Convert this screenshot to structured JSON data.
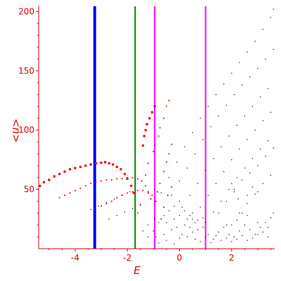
{
  "chart_data": {
    "type": "scatter",
    "title": "",
    "xlabel": "E",
    "ylabel": "<n>",
    "xlim": [
      -5.4,
      3.65
    ],
    "ylim": [
      0,
      205
    ],
    "grid": false,
    "legend": "none",
    "xticks": [
      -4,
      -2,
      0,
      2
    ],
    "yticks": [
      50,
      100,
      150,
      200
    ],
    "xtick_labels": [
      "-4",
      "-2",
      "0",
      "2"
    ],
    "ytick_labels": [
      "50",
      "100",
      "150",
      "200"
    ],
    "axis_color": "#e00000",
    "vertical_lines": [
      {
        "x": -3.25,
        "color": "#0000ff"
      },
      {
        "x": -1.7,
        "color": "#008000"
      },
      {
        "x": -0.95,
        "color": "#ff00ff"
      },
      {
        "x": 1.0,
        "color": "#ff00ff"
      }
    ],
    "series": [
      {
        "color": "#ff0000",
        "size": "large",
        "points": [
          [
            -5.35,
            53
          ],
          [
            -5.2,
            56
          ],
          [
            -5.0,
            58
          ],
          [
            -4.8,
            61
          ],
          [
            -4.6,
            63
          ],
          [
            -4.4,
            65
          ],
          [
            -4.2,
            67
          ],
          [
            -4.0,
            68
          ],
          [
            -3.8,
            69
          ],
          [
            -3.6,
            70
          ],
          [
            -3.4,
            71
          ],
          [
            -3.2,
            72
          ],
          [
            -3.0,
            72.5
          ],
          [
            -2.85,
            73
          ],
          [
            -2.7,
            72
          ],
          [
            -2.55,
            71
          ],
          [
            -2.4,
            69
          ],
          [
            -2.25,
            67
          ],
          [
            -2.1,
            63
          ],
          [
            -2.0,
            59
          ],
          [
            -1.85,
            53
          ],
          [
            -1.75,
            47
          ],
          [
            -1.4,
            87
          ],
          [
            -1.35,
            95
          ],
          [
            -1.3,
            100
          ],
          [
            -1.25,
            105
          ],
          [
            -1.15,
            110
          ],
          [
            -1.05,
            115
          ],
          [
            -0.95,
            120
          ]
        ]
      },
      {
        "color": "#ff0000",
        "size": "small",
        "points": [
          [
            -4.6,
            43
          ],
          [
            -4.4,
            45
          ],
          [
            -4.2,
            47
          ],
          [
            -4.0,
            49
          ],
          [
            -3.8,
            51
          ],
          [
            -3.6,
            53
          ],
          [
            -3.4,
            55
          ],
          [
            -3.2,
            56
          ],
          [
            -3.0,
            57
          ],
          [
            -2.8,
            58
          ],
          [
            -2.6,
            58
          ],
          [
            -2.4,
            59
          ],
          [
            -2.2,
            59
          ],
          [
            -2.0,
            60
          ],
          [
            -1.8,
            60
          ],
          [
            -1.6,
            59
          ],
          [
            -1.45,
            57
          ],
          [
            -1.3,
            53
          ],
          [
            -1.2,
            47
          ],
          [
            -1.1,
            42
          ],
          [
            -3.0,
            36
          ],
          [
            -2.8,
            38
          ],
          [
            -2.6,
            40
          ],
          [
            -2.4,
            43
          ],
          [
            -2.2,
            45
          ],
          [
            -2.0,
            47
          ],
          [
            -1.8,
            48
          ],
          [
            -1.6,
            49
          ],
          [
            -1.4,
            49
          ],
          [
            -1.2,
            48
          ],
          [
            -1.05,
            45
          ],
          [
            -0.95,
            40
          ],
          [
            -1.6,
            30
          ],
          [
            -1.5,
            37
          ],
          [
            -1.3,
            62
          ],
          [
            -1.2,
            72
          ],
          [
            -1.0,
            82
          ],
          [
            -0.95,
            87
          ],
          [
            -0.8,
            95
          ],
          [
            -0.75,
            102
          ],
          [
            -0.6,
            110
          ],
          [
            -0.5,
            120
          ],
          [
            -0.4,
            125
          ],
          [
            -0.9,
            40
          ],
          [
            -0.85,
            48
          ],
          [
            -0.75,
            55
          ],
          [
            -0.6,
            65
          ],
          [
            -0.5,
            73
          ],
          [
            -0.4,
            80
          ],
          [
            -0.3,
            88
          ],
          [
            -0.7,
            25
          ],
          [
            -0.6,
            35
          ],
          [
            -0.45,
            45
          ],
          [
            -0.3,
            52
          ]
        ]
      },
      {
        "color": "#000000",
        "size": "tiny",
        "points": [
          [
            -0.7,
            47
          ],
          [
            -0.4,
            60
          ],
          [
            -0.1,
            73
          ],
          [
            0.2,
            86
          ],
          [
            0.5,
            98
          ],
          [
            0.8,
            110
          ],
          [
            1.1,
            120
          ],
          [
            1.4,
            130
          ],
          [
            1.7,
            139
          ],
          [
            2.0,
            148
          ],
          [
            2.3,
            157
          ],
          [
            2.6,
            166
          ],
          [
            2.9,
            175
          ],
          [
            3.2,
            185
          ],
          [
            3.5,
            195
          ],
          [
            3.6,
            202
          ],
          [
            -0.3,
            45
          ],
          [
            0.0,
            57
          ],
          [
            0.3,
            68
          ],
          [
            0.6,
            80
          ],
          [
            0.9,
            92
          ],
          [
            1.2,
            103
          ],
          [
            1.5,
            112
          ],
          [
            1.8,
            121
          ],
          [
            2.1,
            130
          ],
          [
            2.4,
            138
          ],
          [
            2.7,
            145
          ],
          [
            3.0,
            152
          ],
          [
            3.3,
            160
          ],
          [
            3.6,
            168
          ],
          [
            0.1,
            35
          ],
          [
            0.4,
            45
          ],
          [
            0.7,
            55
          ],
          [
            1.0,
            66
          ],
          [
            1.3,
            76
          ],
          [
            1.6,
            86
          ],
          [
            1.9,
            95
          ],
          [
            2.2,
            104
          ],
          [
            2.5,
            112
          ],
          [
            2.8,
            120
          ],
          [
            3.1,
            128
          ],
          [
            3.4,
            135
          ],
          [
            0.5,
            25
          ],
          [
            0.8,
            35
          ],
          [
            1.1,
            45
          ],
          [
            1.4,
            55
          ],
          [
            1.7,
            65
          ],
          [
            2.0,
            75
          ],
          [
            2.3,
            84
          ],
          [
            2.6,
            92
          ],
          [
            2.9,
            100
          ],
          [
            3.2,
            108
          ],
          [
            3.5,
            115
          ],
          [
            1.0,
            22
          ],
          [
            1.3,
            31
          ],
          [
            1.6,
            40
          ],
          [
            1.9,
            50
          ],
          [
            2.2,
            60
          ],
          [
            2.5,
            68
          ],
          [
            2.8,
            76
          ],
          [
            3.1,
            84
          ],
          [
            3.4,
            91
          ],
          [
            1.5,
            30
          ],
          [
            1.8,
            40
          ],
          [
            2.1,
            50
          ],
          [
            2.4,
            58
          ],
          [
            2.7,
            64
          ],
          [
            3.0,
            70
          ],
          [
            3.3,
            78
          ],
          [
            3.6,
            85
          ],
          [
            2.0,
            20
          ],
          [
            2.3,
            30
          ],
          [
            2.6,
            38
          ],
          [
            2.9,
            46
          ],
          [
            3.2,
            55
          ],
          [
            3.5,
            62
          ],
          [
            -3.4,
            33
          ],
          [
            -3.1,
            36
          ],
          [
            -2.8,
            39
          ],
          [
            -2.5,
            42
          ],
          [
            -2.2,
            45
          ],
          [
            -1.9,
            48
          ],
          [
            -2.7,
            25
          ],
          [
            -2.4,
            28
          ],
          [
            -2.1,
            31
          ],
          [
            -1.8,
            34
          ],
          [
            -1.5,
            37
          ],
          [
            -1.0,
            15
          ],
          [
            -0.8,
            22
          ],
          [
            -0.6,
            28
          ],
          [
            -0.4,
            32
          ],
          [
            -0.2,
            36
          ],
          [
            0.0,
            40
          ],
          [
            0.2,
            32
          ],
          [
            0.4,
            28
          ],
          [
            0.6,
            22
          ],
          [
            -0.9,
            10
          ],
          [
            -0.6,
            12
          ],
          [
            -0.3,
            16
          ],
          [
            -0.1,
            18
          ],
          [
            0.1,
            12
          ],
          [
            0.3,
            10
          ],
          [
            0.5,
            14
          ],
          [
            0.7,
            16
          ],
          [
            0.9,
            18
          ],
          [
            1.1,
            12
          ],
          [
            1.3,
            8
          ],
          [
            1.5,
            14
          ],
          [
            1.7,
            18
          ],
          [
            1.9,
            12
          ],
          [
            2.1,
            10
          ],
          [
            2.3,
            15
          ],
          [
            2.5,
            20
          ],
          [
            2.7,
            16
          ],
          [
            2.9,
            12
          ],
          [
            3.1,
            18
          ],
          [
            3.3,
            22
          ],
          [
            3.5,
            26
          ],
          [
            3.6,
            30
          ],
          [
            1.8,
            20
          ],
          [
            2.2,
            24
          ],
          [
            2.6,
            28
          ],
          [
            3.0,
            22
          ],
          [
            3.4,
            18
          ],
          [
            0.2,
            20
          ],
          [
            0.4,
            18
          ],
          [
            0.6,
            8
          ],
          [
            0.8,
            6
          ],
          [
            1.0,
            10
          ],
          [
            1.2,
            5
          ],
          [
            1.4,
            11
          ],
          [
            1.6,
            7
          ],
          [
            1.8,
            9
          ],
          [
            2.0,
            6
          ],
          [
            2.2,
            8
          ],
          [
            2.4,
            11
          ],
          [
            2.6,
            7
          ],
          [
            2.8,
            9
          ],
          [
            3.0,
            12
          ],
          [
            3.2,
            14
          ],
          [
            3.4,
            10
          ],
          [
            -0.8,
            5
          ],
          [
            -0.5,
            7
          ],
          [
            -0.2,
            4
          ],
          [
            0.0,
            9
          ],
          [
            -1.2,
            20
          ],
          [
            -1.4,
            15
          ],
          [
            -1.2,
            10
          ],
          [
            -0.95,
            25
          ],
          [
            -0.5,
            22
          ],
          [
            -0.2,
            25
          ],
          [
            0.0,
            28
          ],
          [
            0.3,
            25
          ],
          [
            0.5,
            30
          ],
          [
            0.7,
            24
          ],
          [
            0.9,
            26
          ],
          [
            2.0,
            55
          ],
          [
            2.1,
            48
          ],
          [
            2.25,
            42
          ],
          [
            2.4,
            30
          ],
          [
            2.6,
            45
          ],
          [
            2.8,
            52
          ],
          [
            3.0,
            48
          ]
        ]
      }
    ]
  }
}
